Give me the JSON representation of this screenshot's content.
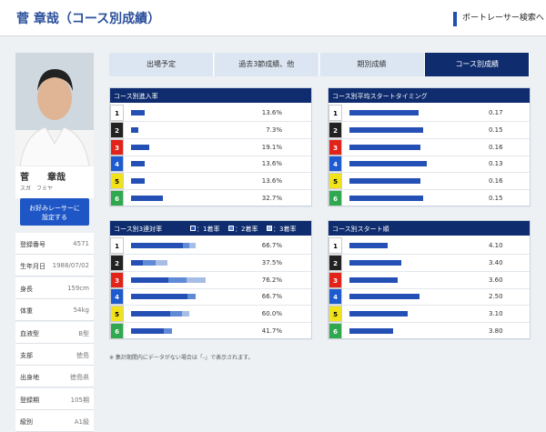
{
  "header": {
    "title": "菅 章哉（コース別成績）",
    "link": "ボートレーサー検索へ"
  },
  "profile": {
    "name": "菅　　章哉",
    "kana": "スガ　フミヤ",
    "button": [
      "お好みレーサーに",
      "設定する"
    ],
    "info": [
      {
        "label": "登録番号",
        "value": "4571"
      },
      {
        "label": "生年月日",
        "value": "1988/07/02"
      },
      {
        "label": "身長",
        "value": "159cm"
      },
      {
        "label": "体重",
        "value": "54kg"
      },
      {
        "label": "血液型",
        "value": "B型"
      },
      {
        "label": "支部",
        "value": "徳島"
      },
      {
        "label": "出身地",
        "value": "徳島県"
      },
      {
        "label": "登録期",
        "value": "105期"
      },
      {
        "label": "級別",
        "value": "A1級"
      }
    ]
  },
  "tabs": [
    "出場予定",
    "過去3節成績、他",
    "期別成績",
    "コース別成績"
  ],
  "panels": [
    {
      "title": "コース別進入率",
      "rows": [
        {
          "lane": "1",
          "value": 13.6,
          "value_label": "13.6%"
        },
        {
          "lane": "2",
          "value": 7.3,
          "value_label": "7.3%"
        },
        {
          "lane": "3",
          "value": 19.1,
          "value_label": "19.1%"
        },
        {
          "lane": "4",
          "value": 13.6,
          "value_label": "13.6%"
        },
        {
          "lane": "5",
          "value": 13.6,
          "value_label": "13.6%"
        },
        {
          "lane": "6",
          "value": 32.7,
          "value_label": "32.7%"
        }
      ]
    },
    {
      "title": "コース別平均スタートタイミング",
      "rows": [
        {
          "lane": "1",
          "value": 0.17
        },
        {
          "lane": "2",
          "value": 0.15
        },
        {
          "lane": "3",
          "value": 0.16
        },
        {
          "lane": "4",
          "value": 0.13
        },
        {
          "lane": "5",
          "value": 0.16
        },
        {
          "lane": "6",
          "value": 0.15
        }
      ]
    },
    {
      "title": "コース別3連対率",
      "legend": [
        "：1着率",
        "：2着率",
        "：3着率"
      ],
      "rows": [
        {
          "lane": "1",
          "rate": 66.7,
          "rate_label": "66.7%",
          "values": [
            53.3,
            6.7,
            6.7
          ]
        },
        {
          "lane": "2",
          "rate": 37.5,
          "rate_label": "37.5%",
          "values": [
            12.5,
            12.5,
            12.5
          ]
        },
        {
          "lane": "3",
          "rate": 76.2,
          "rate_label": "76.2%",
          "values": [
            38.1,
            19.0,
            19.1
          ]
        },
        {
          "lane": "4",
          "rate": 66.7,
          "rate_label": "66.7%",
          "values": [
            58.3,
            8.4,
            0
          ]
        },
        {
          "lane": "5",
          "rate": 60.0,
          "rate_label": "60.0%",
          "values": [
            40.0,
            12.0,
            8.0
          ]
        },
        {
          "lane": "6",
          "rate": 41.7,
          "rate_label": "41.7%",
          "values": [
            33.3,
            8.4,
            0
          ]
        }
      ]
    },
    {
      "title": "コース別スタート順",
      "rows": [
        {
          "lane": "1",
          "value": 4.1,
          "value_label": "4.10"
        },
        {
          "lane": "2",
          "value": 3.4,
          "value_label": "3.40"
        },
        {
          "lane": "3",
          "value": 3.6,
          "value_label": "3.60"
        },
        {
          "lane": "4",
          "value": 2.5,
          "value_label": "2.50"
        },
        {
          "lane": "5",
          "value": 3.1,
          "value_label": "3.10"
        },
        {
          "lane": "6",
          "value": 3.8,
          "value_label": "3.80"
        }
      ]
    }
  ],
  "note": "※ 集計期間内にデータがない場合は「-」で表示されます。"
}
